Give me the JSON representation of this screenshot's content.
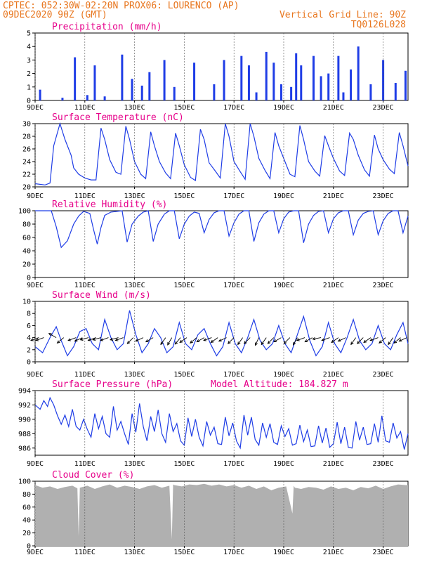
{
  "header": {
    "line1": "CPTEC:  052:30W-02:20N  PROX06: LOURENCO (AP)",
    "line2_left": "09DEC2020 90Z (GMT)",
    "line2_right": "Vertical Grid Line: 90Z",
    "line3_right": "TQ0126L028"
  },
  "x_axis": {
    "ticks": [
      "9DEC",
      "11DEC",
      "13DEC",
      "15DEC",
      "17DEC",
      "19DEC",
      "21DEC",
      "23DEC"
    ],
    "range_days": [
      9,
      24
    ]
  },
  "colors": {
    "header": "#e8761e",
    "title": "#e6008a",
    "series": "#1f3de6",
    "cloud": "#b0b0b0",
    "grid": "#555555"
  },
  "chart_data": [
    {
      "type": "bar",
      "title": "Precipitation (mm/h)",
      "ylim": [
        0,
        5
      ],
      "yticks": [
        0,
        1,
        2,
        3,
        4,
        5
      ],
      "days": [
        9.2,
        10.1,
        10.6,
        11.1,
        11.4,
        11.8,
        12.5,
        12.9,
        13.3,
        13.6,
        14.2,
        14.6,
        15.4,
        16.2,
        16.6,
        17.3,
        17.6,
        17.9,
        18.3,
        18.6,
        18.9,
        19.3,
        19.5,
        19.7,
        20.2,
        20.5,
        20.8,
        21.2,
        21.4,
        21.7,
        22.0,
        22.5,
        23.0,
        23.5,
        23.9
      ],
      "values": [
        0.8,
        0.2,
        3.2,
        0.4,
        2.6,
        0.3,
        3.4,
        1.6,
        1.1,
        2.1,
        3.0,
        1.0,
        2.8,
        1.2,
        3.0,
        3.3,
        2.6,
        0.6,
        3.6,
        2.8,
        1.2,
        1.0,
        3.5,
        2.6,
        3.3,
        1.8,
        2.0,
        3.3,
        0.6,
        2.3,
        4.0,
        1.2,
        3.0,
        1.3,
        2.2
      ]
    },
    {
      "type": "line",
      "title": "Surface Temperature (nC)",
      "ylim": [
        20,
        30
      ],
      "yticks": [
        20,
        22,
        24,
        26,
        28,
        30
      ],
      "x": [
        9.0,
        9.4,
        9.6,
        9.75,
        10.0,
        10.2,
        10.45,
        10.55,
        10.75,
        11.0,
        11.25,
        11.45,
        11.65,
        11.8,
        12.0,
        12.25,
        12.45,
        12.65,
        12.8,
        13.0,
        13.25,
        13.45,
        13.65,
        13.8,
        14.0,
        14.25,
        14.45,
        14.65,
        14.8,
        15.0,
        15.25,
        15.45,
        15.65,
        15.8,
        16.0,
        16.25,
        16.45,
        16.65,
        16.8,
        17.0,
        17.25,
        17.45,
        17.65,
        17.8,
        18.0,
        18.25,
        18.45,
        18.65,
        18.8,
        19.0,
        19.25,
        19.45,
        19.65,
        19.8,
        20.0,
        20.25,
        20.45,
        20.65,
        20.8,
        21.0,
        21.25,
        21.45,
        21.65,
        21.8,
        22.0,
        22.25,
        22.45,
        22.65,
        22.8,
        23.0,
        23.25,
        23.45,
        23.65,
        23.8,
        24.0
      ],
      "y": [
        20.5,
        20.3,
        20.6,
        26.5,
        30.0,
        27.5,
        25.0,
        23.0,
        22.0,
        21.4,
        21.1,
        21.1,
        29.3,
        27.5,
        24.3,
        22.3,
        22.0,
        29.6,
        27.5,
        24.0,
        22.0,
        21.3,
        28.7,
        26.5,
        24.0,
        22.2,
        21.3,
        28.5,
        26.5,
        23.5,
        21.5,
        21.0,
        29.1,
        27.5,
        23.8,
        22.5,
        21.4,
        30.0,
        28.0,
        24.0,
        22.4,
        21.2,
        30.0,
        28.0,
        24.5,
        22.6,
        21.3,
        28.6,
        26.5,
        24.5,
        22.0,
        21.6,
        29.7,
        27.5,
        24.0,
        22.5,
        21.7,
        28.1,
        26.5,
        24.5,
        22.5,
        21.8,
        28.5,
        27.5,
        25.0,
        22.7,
        21.7,
        28.2,
        26.0,
        24.3,
        22.8,
        22.1,
        28.6,
        26.5,
        23.3
      ]
    },
    {
      "type": "line",
      "title": "Relative Humidity (%)",
      "ylim": [
        0,
        100
      ],
      "yticks": [
        0,
        20,
        40,
        60,
        80,
        100
      ],
      "x": [
        9.0,
        9.4,
        9.65,
        9.85,
        10.05,
        10.3,
        10.55,
        10.75,
        10.95,
        11.2,
        11.35,
        11.5,
        11.65,
        11.8,
        12.05,
        12.3,
        12.5,
        12.7,
        12.9,
        13.15,
        13.35,
        13.55,
        13.75,
        13.95,
        14.2,
        14.4,
        14.6,
        14.8,
        15.0,
        15.2,
        15.4,
        15.6,
        15.8,
        16.0,
        16.2,
        16.4,
        16.6,
        16.8,
        17.0,
        17.2,
        17.4,
        17.6,
        17.8,
        18.0,
        18.2,
        18.4,
        18.6,
        18.8,
        19.0,
        19.2,
        19.4,
        19.6,
        19.8,
        20.0,
        20.2,
        20.4,
        20.6,
        20.8,
        21.0,
        21.2,
        21.4,
        21.6,
        21.8,
        22.0,
        22.2,
        22.4,
        22.6,
        22.8,
        23.0,
        23.2,
        23.4,
        23.6,
        23.8,
        24.0
      ],
      "y": [
        100,
        100,
        100,
        76,
        45,
        55,
        80,
        92,
        99,
        96,
        72,
        50,
        75,
        93,
        98,
        99,
        100,
        53,
        80,
        92,
        98,
        100,
        54,
        80,
        95,
        100,
        100,
        58,
        80,
        92,
        98,
        96,
        67,
        87,
        97,
        100,
        100,
        62,
        82,
        95,
        100,
        100,
        54,
        82,
        95,
        100,
        100,
        67,
        88,
        98,
        100,
        100,
        52,
        80,
        93,
        99,
        100,
        67,
        88,
        97,
        100,
        100,
        64,
        86,
        96,
        99,
        100,
        64,
        85,
        96,
        100,
        100,
        67,
        92
      ]
    },
    {
      "type": "line",
      "title": "Surface Wind (m/s)",
      "ylim": [
        0,
        10
      ],
      "yticks": [
        0,
        2,
        4,
        6,
        8,
        10
      ],
      "x": [
        9.0,
        9.3,
        9.6,
        9.85,
        10.05,
        10.3,
        10.55,
        10.8,
        11.05,
        11.3,
        11.55,
        11.8,
        12.05,
        12.3,
        12.55,
        12.8,
        13.05,
        13.3,
        13.55,
        13.8,
        14.05,
        14.3,
        14.55,
        14.8,
        15.05,
        15.3,
        15.55,
        15.8,
        16.05,
        16.3,
        16.55,
        16.8,
        17.05,
        17.3,
        17.55,
        17.8,
        18.05,
        18.3,
        18.55,
        18.8,
        19.05,
        19.3,
        19.55,
        19.8,
        20.05,
        20.3,
        20.55,
        20.8,
        21.05,
        21.3,
        21.55,
        21.8,
        22.05,
        22.3,
        22.55,
        22.8,
        23.05,
        23.3,
        23.55,
        23.8,
        24.0
      ],
      "y": [
        2.5,
        1.5,
        4.0,
        5.8,
        3.5,
        1.0,
        2.5,
        5.0,
        5.5,
        3.0,
        2.0,
        7.0,
        4.0,
        2.0,
        3.0,
        8.5,
        4.5,
        1.5,
        3.0,
        5.5,
        4.0,
        1.5,
        2.5,
        6.5,
        3.0,
        2.0,
        4.5,
        5.5,
        3.0,
        1.0,
        2.5,
        6.5,
        3.0,
        1.5,
        4.0,
        7.0,
        3.5,
        2.0,
        3.0,
        6.0,
        3.0,
        1.5,
        4.5,
        7.5,
        3.5,
        1.0,
        2.5,
        6.5,
        3.0,
        1.5,
        4.0,
        7.0,
        3.5,
        2.0,
        3.0,
        6.0,
        3.0,
        2.0,
        4.5,
        6.5,
        3.0
      ],
      "arrows": [
        {
          "day": 9.15,
          "dir": 250
        },
        {
          "day": 9.35,
          "dir": 250
        },
        {
          "day": 9.85,
          "dir": 300
        },
        {
          "day": 10.15,
          "dir": 230
        },
        {
          "day": 10.65,
          "dir": 250
        },
        {
          "day": 10.9,
          "dir": 245
        },
        {
          "day": 11.15,
          "dir": 255
        },
        {
          "day": 11.45,
          "dir": 250
        },
        {
          "day": 11.65,
          "dir": 255
        },
        {
          "day": 11.95,
          "dir": 250
        },
        {
          "day": 12.35,
          "dir": 255
        },
        {
          "day": 12.55,
          "dir": 250
        },
        {
          "day": 12.95,
          "dir": 225
        },
        {
          "day": 13.35,
          "dir": 245
        },
        {
          "day": 13.75,
          "dir": 240
        },
        {
          "day": 14.25,
          "dir": 215
        },
        {
          "day": 14.5,
          "dir": 210
        },
        {
          "day": 14.85,
          "dir": 220
        },
        {
          "day": 15.1,
          "dir": 235
        },
        {
          "day": 15.5,
          "dir": 230
        },
        {
          "day": 15.8,
          "dir": 240
        },
        {
          "day": 16.1,
          "dir": 250
        },
        {
          "day": 16.35,
          "dir": 235
        },
        {
          "day": 16.7,
          "dir": 245
        },
        {
          "day": 17.0,
          "dir": 225
        },
        {
          "day": 17.35,
          "dir": 215
        },
        {
          "day": 17.65,
          "dir": 225
        },
        {
          "day": 18.0,
          "dir": 205
        },
        {
          "day": 18.3,
          "dir": 215
        },
        {
          "day": 18.6,
          "dir": 225
        },
        {
          "day": 18.9,
          "dir": 240
        },
        {
          "day": 19.25,
          "dir": 225
        },
        {
          "day": 19.55,
          "dir": 210
        },
        {
          "day": 19.85,
          "dir": 250
        },
        {
          "day": 20.15,
          "dir": 240
        },
        {
          "day": 20.5,
          "dir": 260
        },
        {
          "day": 20.85,
          "dir": 250
        },
        {
          "day": 21.2,
          "dir": 235
        },
        {
          "day": 21.5,
          "dir": 245
        },
        {
          "day": 21.9,
          "dir": 215
        },
        {
          "day": 22.2,
          "dir": 225
        },
        {
          "day": 22.5,
          "dir": 235
        },
        {
          "day": 22.8,
          "dir": 250
        },
        {
          "day": 23.1,
          "dir": 230
        },
        {
          "day": 23.4,
          "dir": 215
        },
        {
          "day": 23.7,
          "dir": 230
        },
        {
          "day": 23.95,
          "dir": 245
        }
      ]
    },
    {
      "type": "line",
      "title": "Surface Pressure (hPa)",
      "annotation": "Model Altitude: 184.827 m",
      "ylim": [
        985,
        994
      ],
      "yticks": [
        986,
        988,
        990,
        992,
        994
      ],
      "x": [
        9.0,
        9.2,
        9.35,
        9.5,
        9.6,
        9.75,
        9.9,
        10.05,
        10.2,
        10.35,
        10.5,
        10.65,
        10.8,
        10.95,
        11.1,
        11.25,
        11.4,
        11.55,
        11.7,
        11.85,
        12.0,
        12.15,
        12.3,
        12.45,
        12.6,
        12.75,
        12.9,
        13.05,
        13.2,
        13.35,
        13.5,
        13.65,
        13.8,
        13.95,
        14.1,
        14.25,
        14.4,
        14.55,
        14.7,
        14.85,
        15.0,
        15.15,
        15.3,
        15.45,
        15.6,
        15.75,
        15.9,
        16.05,
        16.2,
        16.35,
        16.5,
        16.65,
        16.8,
        16.95,
        17.1,
        17.25,
        17.4,
        17.55,
        17.7,
        17.85,
        18.0,
        18.15,
        18.3,
        18.45,
        18.6,
        18.75,
        18.9,
        19.05,
        19.2,
        19.35,
        19.5,
        19.65,
        19.8,
        19.95,
        20.1,
        20.25,
        20.4,
        20.55,
        20.7,
        20.85,
        21.0,
        21.15,
        21.3,
        21.45,
        21.6,
        21.75,
        21.9,
        22.05,
        22.2,
        22.35,
        22.5,
        22.65,
        22.8,
        22.95,
        23.1,
        23.25,
        23.4,
        23.55,
        23.7,
        23.85,
        24.0
      ],
      "y": [
        992.0,
        991.4,
        992.6,
        991.8,
        993.0,
        992.0,
        990.5,
        989.3,
        990.6,
        989.0,
        991.4,
        989.0,
        988.5,
        990.0,
        988.6,
        987.5,
        990.8,
        988.7,
        990.4,
        988.0,
        987.5,
        991.8,
        988.5,
        989.7,
        988.0,
        986.5,
        990.8,
        988.2,
        992.2,
        989.0,
        987.0,
        990.4,
        988.3,
        991.3,
        988.0,
        986.8,
        990.8,
        988.3,
        989.4,
        987.0,
        986.4,
        990.2,
        987.6,
        990.0,
        987.5,
        986.3,
        989.7,
        987.8,
        988.9,
        986.6,
        986.5,
        990.3,
        987.7,
        989.5,
        987.0,
        986.0,
        990.6,
        987.8,
        990.3,
        987.2,
        986.4,
        989.5,
        987.5,
        989.4,
        986.8,
        986.5,
        989.1,
        987.6,
        988.7,
        986.4,
        986.6,
        989.2,
        986.9,
        988.5,
        986.2,
        986.3,
        989.1,
        986.7,
        988.8,
        986.1,
        986.6,
        989.6,
        986.6,
        988.9,
        986.1,
        986.0,
        989.7,
        987.1,
        988.9,
        986.5,
        986.6,
        989.4,
        986.8,
        990.5,
        987.0,
        986.8,
        989.5,
        987.4,
        988.3,
        985.8,
        988.0
      ]
    },
    {
      "type": "area",
      "title": "Cloud Cover (%)",
      "ylim": [
        0,
        100
      ],
      "yticks": [
        0,
        20,
        40,
        60,
        80,
        100
      ],
      "x": [
        9.0,
        9.3,
        9.6,
        9.9,
        10.2,
        10.5,
        10.7,
        10.75,
        10.8,
        11.1,
        11.4,
        11.7,
        12.0,
        12.3,
        12.6,
        12.9,
        13.2,
        13.5,
        13.8,
        14.1,
        14.4,
        14.5,
        14.55,
        14.6,
        14.9,
        15.2,
        15.5,
        15.8,
        16.1,
        16.4,
        16.7,
        17.0,
        17.3,
        17.6,
        17.9,
        18.2,
        18.5,
        18.8,
        19.1,
        19.35,
        19.4,
        19.45,
        19.7,
        20.0,
        20.3,
        20.6,
        20.9,
        21.2,
        21.5,
        21.8,
        22.1,
        22.4,
        22.7,
        23.0,
        23.3,
        23.6,
        23.9,
        24.0
      ],
      "y": [
        94,
        90,
        92,
        88,
        91,
        93,
        89,
        15,
        90,
        93,
        88,
        92,
        95,
        90,
        93,
        91,
        88,
        92,
        94,
        90,
        93,
        10,
        95,
        94,
        92,
        95,
        94,
        96,
        93,
        95,
        92,
        94,
        90,
        93,
        88,
        92,
        86,
        90,
        92,
        50,
        93,
        90,
        88,
        91,
        90,
        87,
        92,
        88,
        90,
        86,
        91,
        89,
        93,
        88,
        92,
        95,
        94,
        94
      ]
    }
  ]
}
